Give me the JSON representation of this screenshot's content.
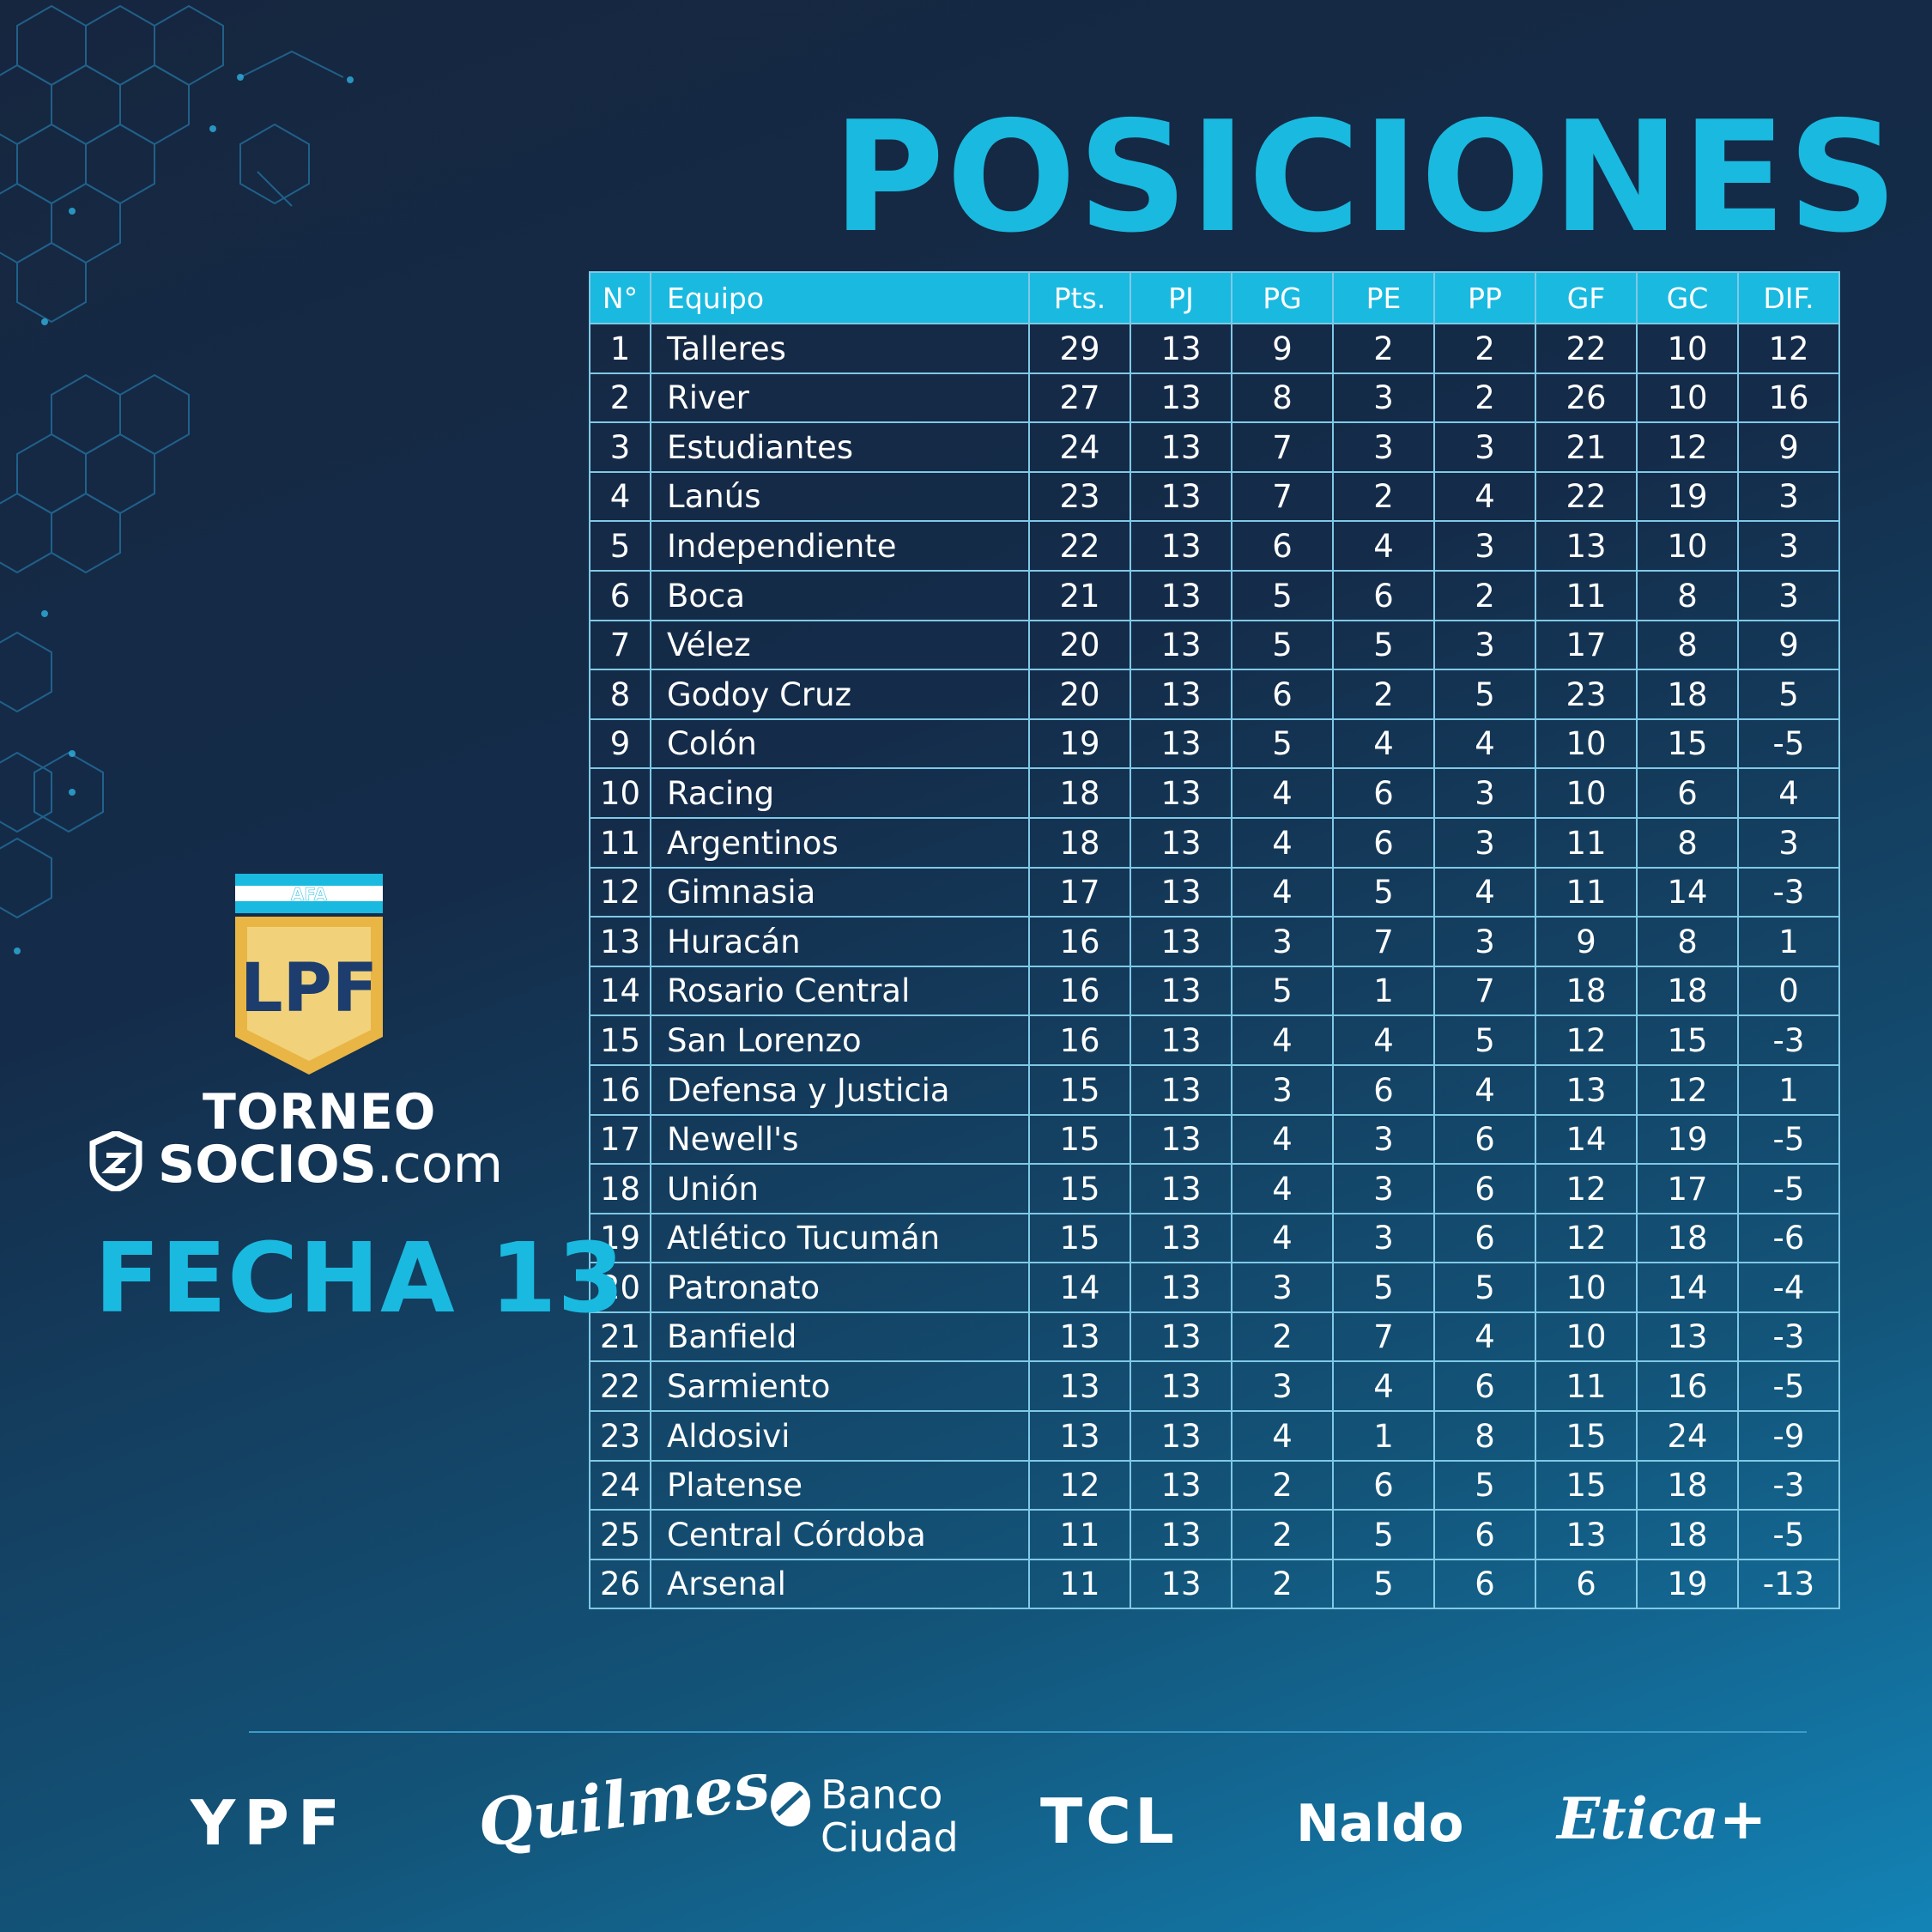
{
  "title": "POSICIONES",
  "table": {
    "headers": [
      "N°",
      "Equipo",
      "Pts.",
      "PJ",
      "PG",
      "PE",
      "PP",
      "GF",
      "GC",
      "DIF."
    ],
    "rows": [
      [
        "1",
        "Talleres",
        "29",
        "13",
        "9",
        "2",
        "2",
        "22",
        "10",
        "12"
      ],
      [
        "2",
        "River",
        "27",
        "13",
        "8",
        "3",
        "2",
        "26",
        "10",
        "16"
      ],
      [
        "3",
        "Estudiantes",
        "24",
        "13",
        "7",
        "3",
        "3",
        "21",
        "12",
        "9"
      ],
      [
        "4",
        "Lanús",
        "23",
        "13",
        "7",
        "2",
        "4",
        "22",
        "19",
        "3"
      ],
      [
        "5",
        "Independiente",
        "22",
        "13",
        "6",
        "4",
        "3",
        "13",
        "10",
        "3"
      ],
      [
        "6",
        "Boca",
        "21",
        "13",
        "5",
        "6",
        "2",
        "11",
        "8",
        "3"
      ],
      [
        "7",
        "Vélez",
        "20",
        "13",
        "5",
        "5",
        "3",
        "17",
        "8",
        "9"
      ],
      [
        "8",
        "Godoy Cruz",
        "20",
        "13",
        "6",
        "2",
        "5",
        "23",
        "18",
        "5"
      ],
      [
        "9",
        "Colón",
        "19",
        "13",
        "5",
        "4",
        "4",
        "10",
        "15",
        "-5"
      ],
      [
        "10",
        "Racing",
        "18",
        "13",
        "4",
        "6",
        "3",
        "10",
        "6",
        "4"
      ],
      [
        "11",
        "Argentinos",
        "18",
        "13",
        "4",
        "6",
        "3",
        "11",
        "8",
        "3"
      ],
      [
        "12",
        "Gimnasia",
        "17",
        "13",
        "4",
        "5",
        "4",
        "11",
        "14",
        "-3"
      ],
      [
        "13",
        "Huracán",
        "16",
        "13",
        "3",
        "7",
        "3",
        "9",
        "8",
        "1"
      ],
      [
        "14",
        "Rosario Central",
        "16",
        "13",
        "5",
        "1",
        "7",
        "18",
        "18",
        "0"
      ],
      [
        "15",
        "San Lorenzo",
        "16",
        "13",
        "4",
        "4",
        "5",
        "12",
        "15",
        "-3"
      ],
      [
        "16",
        "Defensa y Justicia",
        "15",
        "13",
        "3",
        "6",
        "4",
        "13",
        "12",
        "1"
      ],
      [
        "17",
        "Newell's",
        "15",
        "13",
        "4",
        "3",
        "6",
        "14",
        "19",
        "-5"
      ],
      [
        "18",
        "Unión",
        "15",
        "13",
        "4",
        "3",
        "6",
        "12",
        "17",
        "-5"
      ],
      [
        "19",
        "Atlético Tucumán",
        "15",
        "13",
        "4",
        "3",
        "6",
        "12",
        "18",
        "-6"
      ],
      [
        "20",
        "Patronato",
        "14",
        "13",
        "3",
        "5",
        "5",
        "10",
        "14",
        "-4"
      ],
      [
        "21",
        "Banfield",
        "13",
        "13",
        "2",
        "7",
        "4",
        "10",
        "13",
        "-3"
      ],
      [
        "22",
        "Sarmiento",
        "13",
        "13",
        "3",
        "4",
        "6",
        "11",
        "16",
        "-5"
      ],
      [
        "23",
        "Aldosivi",
        "13",
        "13",
        "4",
        "1",
        "8",
        "15",
        "24",
        "-9"
      ],
      [
        "24",
        "Platense",
        "12",
        "13",
        "2",
        "6",
        "5",
        "15",
        "18",
        "-3"
      ],
      [
        "25",
        "Central Córdoba",
        "11",
        "13",
        "2",
        "5",
        "6",
        "13",
        "18",
        "-5"
      ],
      [
        "26",
        "Arsenal",
        "11",
        "13",
        "2",
        "5",
        "6",
        "6",
        "19",
        "-13"
      ]
    ]
  },
  "branding": {
    "afa": "AFA",
    "lpf": "LPF",
    "torneo": "TORNEO",
    "socios_bold": "SOCIOS",
    "socios_light": ".com",
    "fecha": "FECHA 13"
  },
  "sponsors": {
    "ypf": "YPF",
    "quilmes": "Quilmes",
    "banco_line1": "Banco",
    "banco_line2": "Ciudad",
    "tcl": "TCL",
    "naldo": "Naldo",
    "etica": "Etica+"
  },
  "colors": {
    "accent": "#1ab9e0",
    "logo_gold": "#e9b545",
    "logo_blue": "#1c3d6e",
    "background_dark": "#16263f",
    "background_light": "#1383b6"
  },
  "icons": [
    "hexagon-pattern",
    "lpf-shield-logo",
    "socios-shield-icon",
    "banco-ciudad-icon"
  ]
}
